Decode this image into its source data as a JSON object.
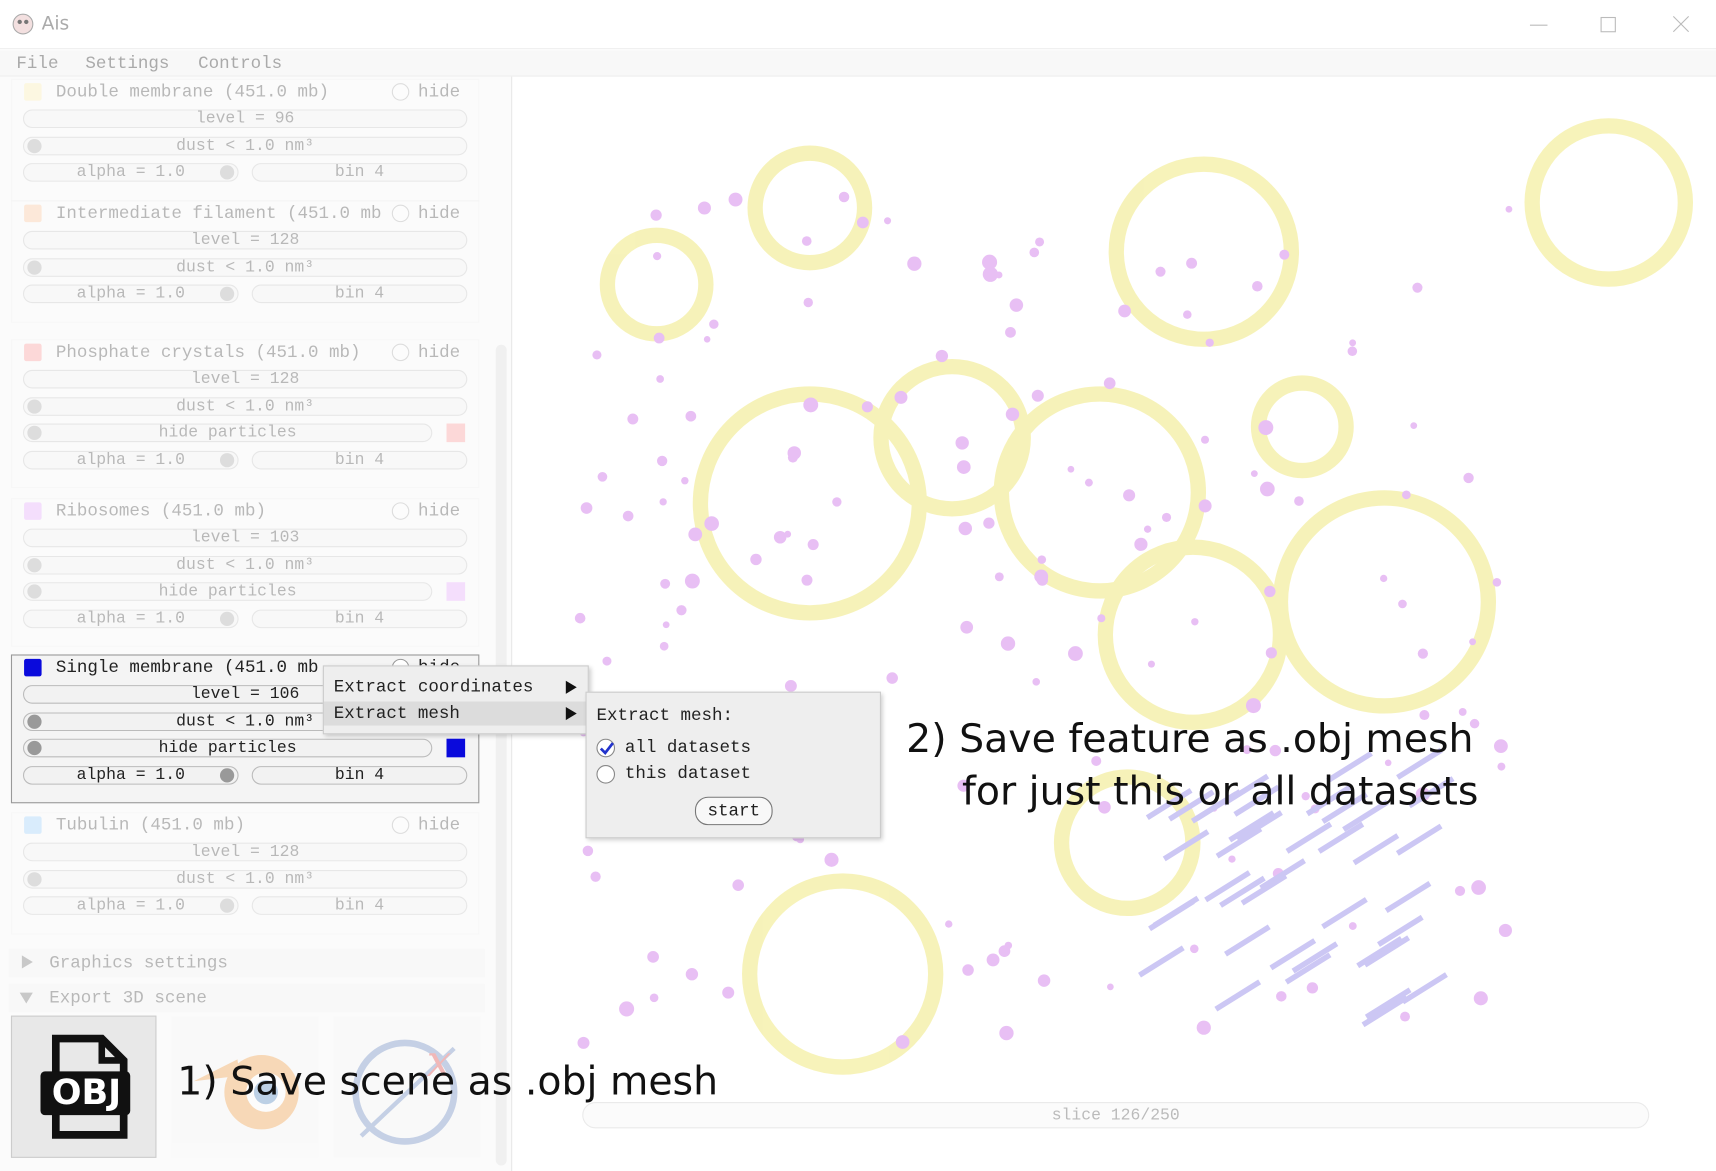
{
  "window": {
    "title": "Ais"
  },
  "menu": [
    "File",
    "Settings",
    "Controls"
  ],
  "features": [
    {
      "name": "Double membrane (451.0 mb)",
      "hide": "hide",
      "level": "level = 96",
      "dust": "dust < 1.0 nm³",
      "alpha": "alpha = 1.0",
      "bin": "bin 4",
      "color": "#fff1a6"
    },
    {
      "name": "Intermediate filament (451.0 mb",
      "hide": "hide",
      "level": "level = 128",
      "dust": "dust < 1.0 nm³",
      "alpha": "alpha = 1.0",
      "bin": "bin 4",
      "color": "#ffbf8c"
    },
    {
      "name": "Phosphate crystals (451.0 mb)",
      "hide": "hide",
      "level": "level = 128",
      "dust": "dust < 1.0 nm³",
      "particles": "hide particles",
      "alpha": "alpha = 1.0",
      "bin": "bin 4",
      "color": "#ff8a8a"
    },
    {
      "name": "Ribosomes (451.0 mb)",
      "hide": "hide",
      "level": "level = 103",
      "dust": "dust < 1.0 nm³",
      "particles": "hide particles",
      "alpha": "alpha = 1.0",
      "bin": "bin 4",
      "color": "#e79cff"
    },
    {
      "name": "Single membrane (451.0 mb",
      "hide": "hide",
      "level": "level = 106",
      "dust": "dust < 1.0 nm³",
      "particles": "hide particles",
      "alpha": "alpha = 1.0",
      "bin": "bin 4",
      "color": "#0a0adc"
    },
    {
      "name": "Tubulin (451.0 mb)",
      "hide": "hide",
      "level": "level = 128",
      "dust": "dust < 1.0 nm³",
      "alpha": "alpha = 1.0",
      "bin": "bin 4",
      "color": "#8ecbff"
    }
  ],
  "selected_feature": 4,
  "sections": [
    "Graphics settings",
    "Export 3D scene"
  ],
  "export_icons": [
    "OBJ"
  ],
  "context_menu": [
    "Extract coordinates",
    "Extract mesh"
  ],
  "submenu": {
    "title": "Extract mesh:",
    "options": [
      "all datasets",
      "this dataset"
    ],
    "button": "start"
  },
  "annotations": {
    "feature": [
      "2) Save feature as .obj mesh",
      "for just this or all datasets"
    ],
    "scene": "1) Save scene as .obj mesh"
  },
  "slice": "slice 126/250"
}
